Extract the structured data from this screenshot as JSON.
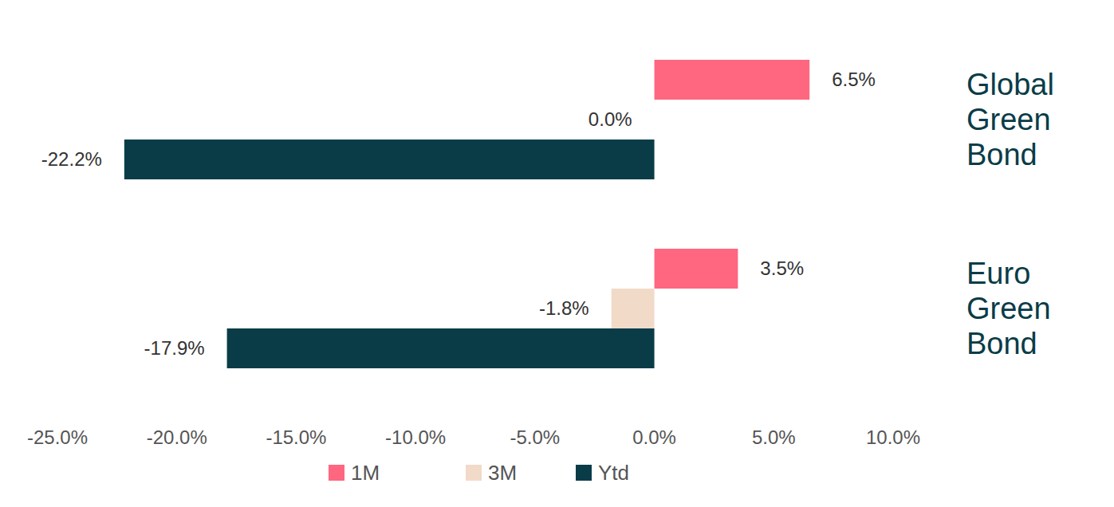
{
  "chart_data": {
    "type": "bar",
    "orientation": "horizontal",
    "data_labels": true,
    "grid": false,
    "categories": [
      "Global Green Bond",
      "Euro Green Bond"
    ],
    "series": [
      {
        "name": "1M",
        "color": "#ff6680",
        "values": [
          6.5,
          3.5
        ],
        "value_labels": [
          "6.5%",
          "3.5%"
        ]
      },
      {
        "name": "3M",
        "color": "#f2dac8",
        "values": [
          0.0,
          -1.8
        ],
        "value_labels": [
          "0.0%",
          "-1.8%"
        ]
      },
      {
        "name": "Ytd",
        "color": "#0a3c48",
        "values": [
          -22.2,
          -17.9
        ],
        "value_labels": [
          "-22.2%",
          "-17.9%"
        ]
      }
    ],
    "xlim": [
      -25,
      10
    ],
    "xticks": [
      {
        "value": -25,
        "label": "-25.0%"
      },
      {
        "value": -20,
        "label": "-20.0%"
      },
      {
        "value": -15,
        "label": "-15.0%"
      },
      {
        "value": -10,
        "label": "-10.0%"
      },
      {
        "value": -5,
        "label": "-5.0%"
      },
      {
        "value": 0,
        "label": "0.0%"
      },
      {
        "value": 5,
        "label": "5.0%"
      },
      {
        "value": 10,
        "label": "10.0%"
      }
    ],
    "legend": "bottom"
  }
}
